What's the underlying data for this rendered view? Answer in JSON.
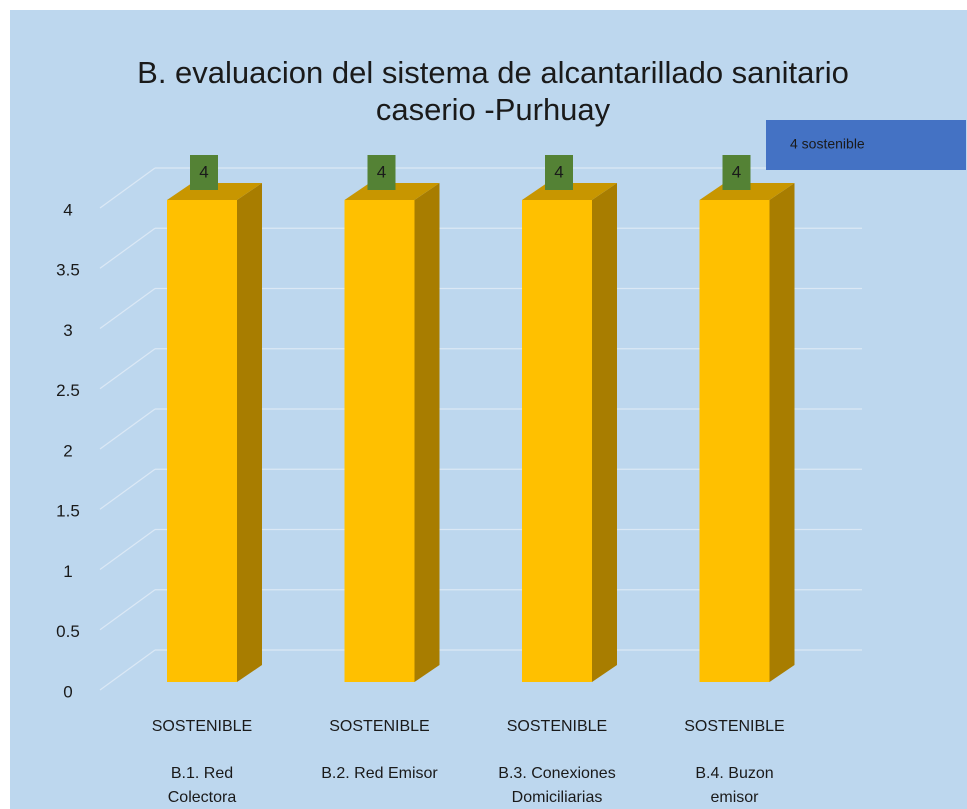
{
  "chart_data": {
    "type": "bar3d",
    "title": "B. evaluacion del sistema de alcantarillado sanitario caserio -Purhuay",
    "categories": [
      "B.1. Red Colectora",
      "B.2. Red Emisor",
      "B.3. Conexiones Domiciliarias",
      "B.4. Buzon emisor"
    ],
    "subcategories": [
      "SOSTENIBLE",
      "SOSTENIBLE",
      "SOSTENIBLE",
      "SOSTENIBLE"
    ],
    "series": [
      {
        "name": "4 sostenible",
        "color": "#ffc000",
        "values": [
          4,
          4,
          4,
          4
        ]
      }
    ],
    "ylim": [
      0,
      4
    ],
    "yticks": [
      0,
      0.5,
      1,
      1.5,
      2,
      2.5,
      3,
      3.5,
      4
    ],
    "grid": true,
    "legend": "top-right",
    "label_color": "#548235"
  }
}
